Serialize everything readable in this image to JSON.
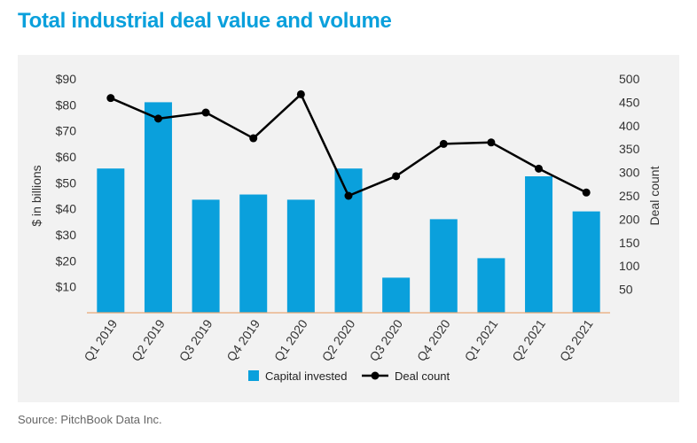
{
  "title": "Total industrial deal value and volume",
  "source": "Source: PitchBook Data Inc.",
  "chart_data": {
    "type": "bar+line",
    "categories": [
      "Q1 2019",
      "Q2 2019",
      "Q3 2019",
      "Q4 2019",
      "Q1 2020",
      "Q2 2020",
      "Q3 2020",
      "Q4 2020",
      "Q1 2021",
      "Q2 2021",
      "Q3 2021"
    ],
    "series": [
      {
        "name": "Capital invested",
        "type": "bar",
        "axis": "left",
        "values": [
          55.5,
          81,
          43.5,
          45.5,
          43.5,
          55.5,
          13.5,
          36,
          21,
          52.5,
          39
        ],
        "color": "#0aa0dc"
      },
      {
        "name": "Deal count",
        "type": "line",
        "axis": "right",
        "values": [
          459,
          415,
          428,
          373,
          467,
          250,
          292,
          361,
          364,
          308,
          257
        ],
        "color": "#000000"
      }
    ],
    "ylabel": "$ in billions",
    "y2label": "Deal count",
    "ylim": [
      0,
      90
    ],
    "y2lim": [
      0,
      500
    ],
    "yticks": [
      10,
      20,
      30,
      40,
      50,
      60,
      70,
      80,
      90
    ],
    "ytick_labels": [
      "$10",
      "$20",
      "$30",
      "$40",
      "$50",
      "$60",
      "$70",
      "$80",
      "$90"
    ],
    "y2ticks": [
      50,
      100,
      150,
      200,
      250,
      300,
      350,
      400,
      450,
      500
    ],
    "legend": [
      "Capital invested",
      "Deal count"
    ],
    "legend_position": "bottom",
    "grid": false,
    "baseline_color": "#e8a877"
  }
}
